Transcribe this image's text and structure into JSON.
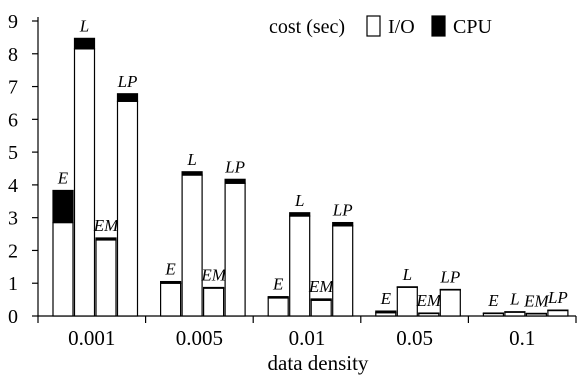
{
  "chart_data": {
    "type": "bar",
    "stacked": true,
    "xlabel": "data density",
    "ylabel": "",
    "ylim": [
      0,
      9
    ],
    "yticks": [
      "0",
      "1",
      "2",
      "3",
      "4",
      "5",
      "6",
      "7",
      "8",
      "9"
    ],
    "grid": false,
    "legend_position": "top-right",
    "legend": {
      "title": "cost (sec)",
      "entries": [
        {
          "name": "I/O",
          "color": "#ffffff"
        },
        {
          "name": "CPU",
          "color": "#000000"
        }
      ]
    },
    "groups": [
      {
        "category": "0.001",
        "bars": [
          {
            "label": "E",
            "io": 2.85,
            "cpu": 0.98
          },
          {
            "label": "L",
            "io": 8.15,
            "cpu": 0.32
          },
          {
            "label": "EM",
            "io": 2.32,
            "cpu": 0.06
          },
          {
            "label": "LP",
            "io": 6.55,
            "cpu": 0.23
          }
        ]
      },
      {
        "category": "0.005",
        "bars": [
          {
            "label": "E",
            "io": 1.0,
            "cpu": 0.05
          },
          {
            "label": "L",
            "io": 4.3,
            "cpu": 0.1
          },
          {
            "label": "EM",
            "io": 0.85,
            "cpu": 0.02
          },
          {
            "label": "LP",
            "io": 4.05,
            "cpu": 0.12
          }
        ]
      },
      {
        "category": "0.01",
        "bars": [
          {
            "label": "E",
            "io": 0.55,
            "cpu": 0.04
          },
          {
            "label": "L",
            "io": 3.05,
            "cpu": 0.1
          },
          {
            "label": "EM",
            "io": 0.48,
            "cpu": 0.04
          },
          {
            "label": "LP",
            "io": 2.75,
            "cpu": 0.1
          }
        ]
      },
      {
        "category": "0.05",
        "bars": [
          {
            "label": "E",
            "io": 0.1,
            "cpu": 0.05
          },
          {
            "label": "L",
            "io": 0.88,
            "cpu": 0.01
          },
          {
            "label": "EM",
            "io": 0.08,
            "cpu": 0.01
          },
          {
            "label": "LP",
            "io": 0.8,
            "cpu": 0.01
          }
        ]
      },
      {
        "category": "0.1",
        "bars": [
          {
            "label": "E",
            "io": 0.08,
            "cpu": 0.01
          },
          {
            "label": "L",
            "io": 0.12,
            "cpu": 0.01
          },
          {
            "label": "EM",
            "io": 0.07,
            "cpu": 0.01
          },
          {
            "label": "LP",
            "io": 0.17,
            "cpu": 0.01
          }
        ]
      }
    ]
  }
}
